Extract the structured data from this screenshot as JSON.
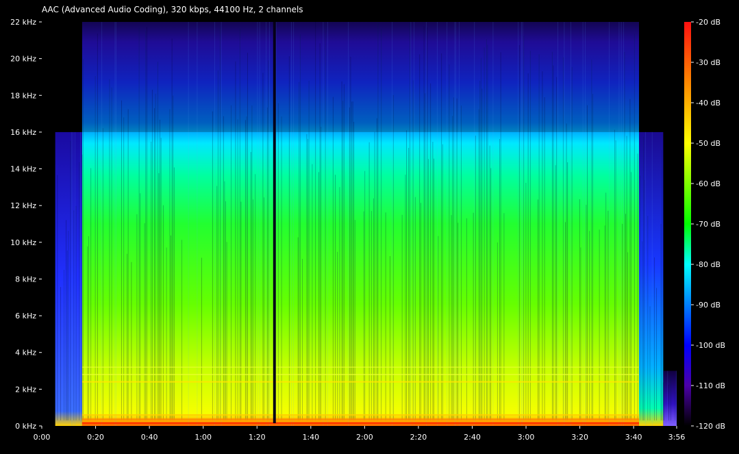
{
  "chart_data": {
    "type": "heatmap",
    "title": "AAC (Advanced Audio Coding), 320 kbps, 44100 Hz, 2 channels",
    "xlabel": "",
    "ylabel": "",
    "x_axis": {
      "unit": "time",
      "range_seconds": [
        0,
        236
      ],
      "ticks": [
        {
          "label": "0:00",
          "seconds": 0
        },
        {
          "label": "0:20",
          "seconds": 20
        },
        {
          "label": "0:40",
          "seconds": 40
        },
        {
          "label": "1:00",
          "seconds": 60
        },
        {
          "label": "1:20",
          "seconds": 80
        },
        {
          "label": "1:40",
          "seconds": 100
        },
        {
          "label": "2:00",
          "seconds": 120
        },
        {
          "label": "2:20",
          "seconds": 140
        },
        {
          "label": "2:40",
          "seconds": 160
        },
        {
          "label": "3:00",
          "seconds": 180
        },
        {
          "label": "3:20",
          "seconds": 200
        },
        {
          "label": "3:40",
          "seconds": 220
        },
        {
          "label": "3:56",
          "seconds": 236
        }
      ]
    },
    "y_axis": {
      "unit": "kHz",
      "range": [
        0,
        22
      ],
      "ticks": [
        {
          "label": "0 kHz",
          "value": 0
        },
        {
          "label": "2 kHz",
          "value": 2
        },
        {
          "label": "4 kHz",
          "value": 4
        },
        {
          "label": "6 kHz",
          "value": 6
        },
        {
          "label": "8 kHz",
          "value": 8
        },
        {
          "label": "10 kHz",
          "value": 10
        },
        {
          "label": "12 kHz",
          "value": 12
        },
        {
          "label": "14 kHz",
          "value": 14
        },
        {
          "label": "16 kHz",
          "value": 16
        },
        {
          "label": "18 kHz",
          "value": 18
        },
        {
          "label": "20 kHz",
          "value": 20
        },
        {
          "label": "22 kHz",
          "value": 22
        }
      ]
    },
    "colorbar": {
      "unit": "dB",
      "range": [
        -120,
        -20
      ],
      "ticks": [
        {
          "label": "-20 dB",
          "value": -20
        },
        {
          "label": "-30 dB",
          "value": -30
        },
        {
          "label": "-40 dB",
          "value": -40
        },
        {
          "label": "-50 dB",
          "value": -50
        },
        {
          "label": "-60 dB",
          "value": -60
        },
        {
          "label": "-70 dB",
          "value": -70
        },
        {
          "label": "-80 dB",
          "value": -80
        },
        {
          "label": "-90 dB",
          "value": -90
        },
        {
          "label": "-100 dB",
          "value": -100
        },
        {
          "label": "-110 dB",
          "value": -110
        },
        {
          "label": "-120 dB",
          "value": -120
        }
      ],
      "colors": [
        {
          "db": -20,
          "color": "#ff1010"
        },
        {
          "db": -35,
          "color": "#ff8800"
        },
        {
          "db": -50,
          "color": "#ffff00"
        },
        {
          "db": -70,
          "color": "#00ff00"
        },
        {
          "db": -80,
          "color": "#00ffff"
        },
        {
          "db": -100,
          "color": "#0000ff"
        },
        {
          "db": -110,
          "color": "#4b00a8"
        },
        {
          "db": -120,
          "color": "#000000"
        }
      ]
    },
    "regions": [
      {
        "name": "intro-sparse",
        "t_start": 5,
        "t_end": 15,
        "f_max_khz": 16,
        "level_db": -92
      },
      {
        "name": "main-body",
        "t_start": 15,
        "t_end": 222,
        "f_max_khz": 22,
        "level_db": -65
      },
      {
        "name": "outro-fade",
        "t_start": 222,
        "t_end": 231,
        "f_max_khz": 16,
        "level_db": -85
      },
      {
        "name": "tail",
        "t_start": 231,
        "t_end": 236,
        "f_max_khz": 3,
        "level_db": -110
      }
    ],
    "gaps": [
      {
        "t": 86.5,
        "width_seconds": 1
      }
    ],
    "grid": false,
    "background": "#000000",
    "text_color": "#ffffff"
  }
}
